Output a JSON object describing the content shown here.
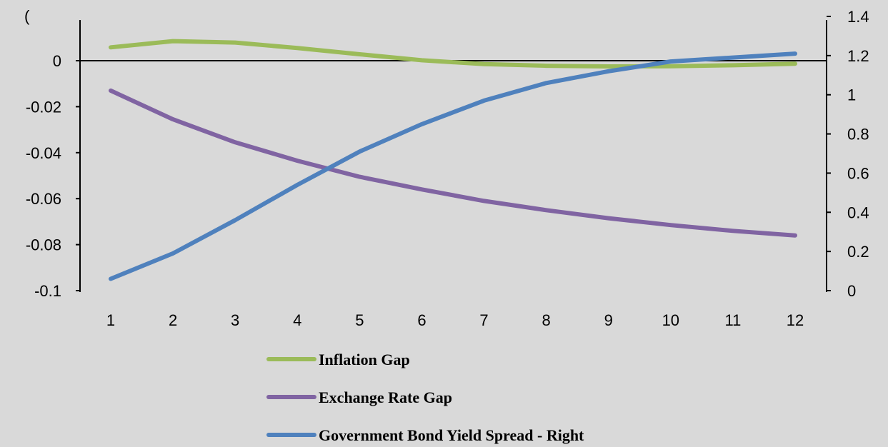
{
  "chart_data": {
    "type": "line",
    "title": "",
    "xlabel": "",
    "ylabel": "",
    "x": [
      1,
      2,
      3,
      4,
      5,
      6,
      7,
      8,
      9,
      10,
      11,
      12
    ],
    "categories": [
      "1",
      "2",
      "3",
      "4",
      "5",
      "6",
      "7",
      "8",
      "9",
      "10",
      "11",
      "12"
    ],
    "ylim_left": [
      -0.1,
      0.015
    ],
    "ylim_right": [
      0,
      1.4
    ],
    "yticks_left": [
      "0",
      "-0.02",
      "-0.04",
      "-0.06",
      "-0.08",
      "-0.1"
    ],
    "yticks_left_values": [
      0,
      -0.02,
      -0.04,
      -0.06,
      -0.08,
      -0.1
    ],
    "yticks_right": [
      "1.4",
      "1.2",
      "1",
      "0.8",
      "0.6",
      "0.4",
      "0.2",
      "0"
    ],
    "yticks_right_values": [
      1.4,
      1.2,
      1.0,
      0.8,
      0.6,
      0.4,
      0.2,
      0
    ],
    "top_left_fragment": "(",
    "grid": false,
    "legend_position": "bottom",
    "series": [
      {
        "name": "Inflation Gap",
        "axis": "left",
        "color": "#9bbb59",
        "values": [
          0.0058,
          0.0085,
          0.0079,
          0.0055,
          0.0028,
          0.0002,
          -0.0015,
          -0.0022,
          -0.0025,
          -0.0024,
          -0.002,
          -0.0013
        ]
      },
      {
        "name": "Exchange Rate Gap",
        "axis": "left",
        "color": "#8064a2",
        "values": [
          -0.013,
          -0.0255,
          -0.0355,
          -0.0435,
          -0.0505,
          -0.056,
          -0.061,
          -0.065,
          -0.0685,
          -0.0715,
          -0.074,
          -0.076
        ]
      },
      {
        "name": "Government Bond Yield Spread - Right",
        "axis": "right",
        "color": "#4f81bd",
        "values": [
          0.06,
          0.19,
          0.36,
          0.54,
          0.71,
          0.85,
          0.97,
          1.06,
          1.12,
          1.17,
          1.19,
          1.21
        ]
      }
    ]
  }
}
